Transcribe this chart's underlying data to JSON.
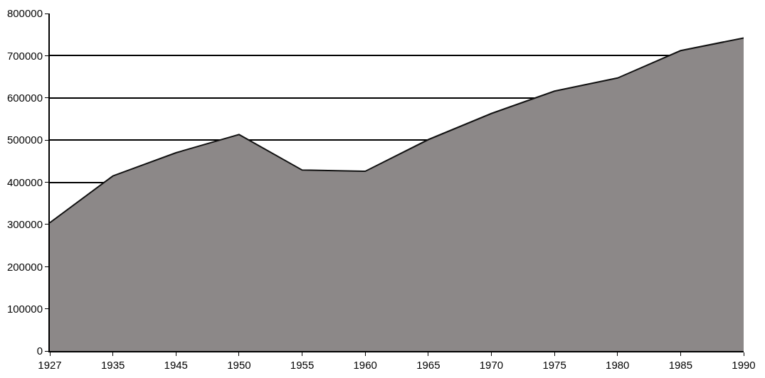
{
  "chart_data": {
    "type": "area",
    "categories": [
      "1927",
      "1935",
      "1945",
      "1950",
      "1955",
      "1960",
      "1965",
      "1970",
      "1975",
      "1980",
      "1985",
      "1990"
    ],
    "series": [
      {
        "color": "#8c8888",
        "values": [
          304000,
          415000,
          470000,
          513000,
          429000,
          426000,
          501000,
          563000,
          616000,
          647000,
          712000,
          742000
        ]
      }
    ],
    "ylim": [
      0,
      800000
    ],
    "yticks": [
      0,
      100000,
      200000,
      300000,
      400000,
      500000,
      600000,
      700000,
      800000
    ],
    "grid": "y"
  }
}
